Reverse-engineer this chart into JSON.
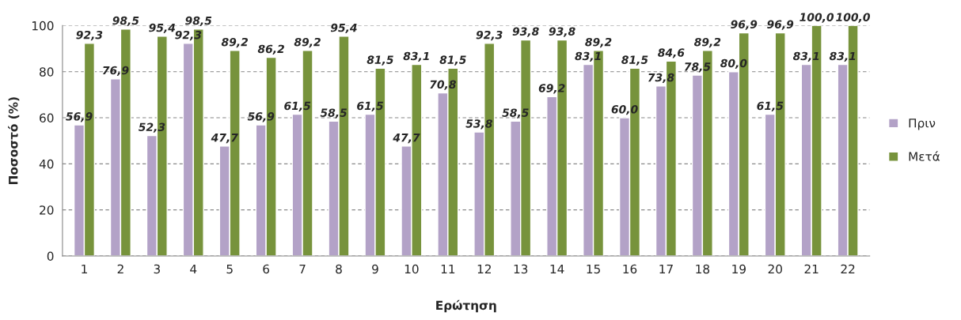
{
  "chart_data": {
    "type": "bar",
    "xlabel": "Ερώτηση",
    "ylabel": "Ποσοστό (%)",
    "categories": [
      "1",
      "2",
      "3",
      "4",
      "5",
      "6",
      "7",
      "8",
      "9",
      "10",
      "11",
      "12",
      "13",
      "14",
      "15",
      "16",
      "17",
      "18",
      "19",
      "20",
      "21",
      "22"
    ],
    "series": [
      {
        "name": "Πριν",
        "color": "#b3a2c7",
        "values": [
          56.9,
          76.9,
          52.3,
          92.3,
          47.7,
          56.9,
          61.5,
          58.5,
          61.5,
          47.7,
          70.8,
          53.8,
          58.5,
          69.2,
          83.1,
          60.0,
          73.8,
          78.5,
          80.0,
          61.5,
          83.1,
          83.1
        ],
        "value_labels": [
          "56,9",
          "76,9",
          "52,3",
          "92,3",
          "47,7",
          "56,9",
          "61,5",
          "58,5",
          "61,5",
          "47,7",
          "70,8",
          "53,8",
          "58,5",
          "69,2",
          "83,1",
          "60,0",
          "73,8",
          "78,5",
          "80,0",
          "61,5",
          "83,1",
          "83,1"
        ]
      },
      {
        "name": "Μετά",
        "color": "#77933c",
        "values": [
          92.3,
          98.5,
          95.4,
          98.5,
          89.2,
          86.2,
          89.2,
          95.4,
          81.5,
          83.1,
          81.5,
          92.3,
          93.8,
          93.8,
          89.2,
          81.5,
          84.6,
          89.2,
          96.9,
          96.9,
          100.0,
          100.0
        ],
        "value_labels": [
          "92,3",
          "98,5",
          "95,4",
          "98,5",
          "89,2",
          "86,2",
          "89,2",
          "95,4",
          "81,5",
          "83,1",
          "81,5",
          "92,3",
          "93,8",
          "93,8",
          "89,2",
          "81,5",
          "84,6",
          "89,2",
          "96,9",
          "96,9",
          "100,0",
          "100,0"
        ]
      }
    ],
    "ylim": [
      0,
      100
    ],
    "yticks": [
      0,
      20,
      40,
      60,
      80,
      100
    ],
    "grid": "y",
    "legend": "right"
  }
}
